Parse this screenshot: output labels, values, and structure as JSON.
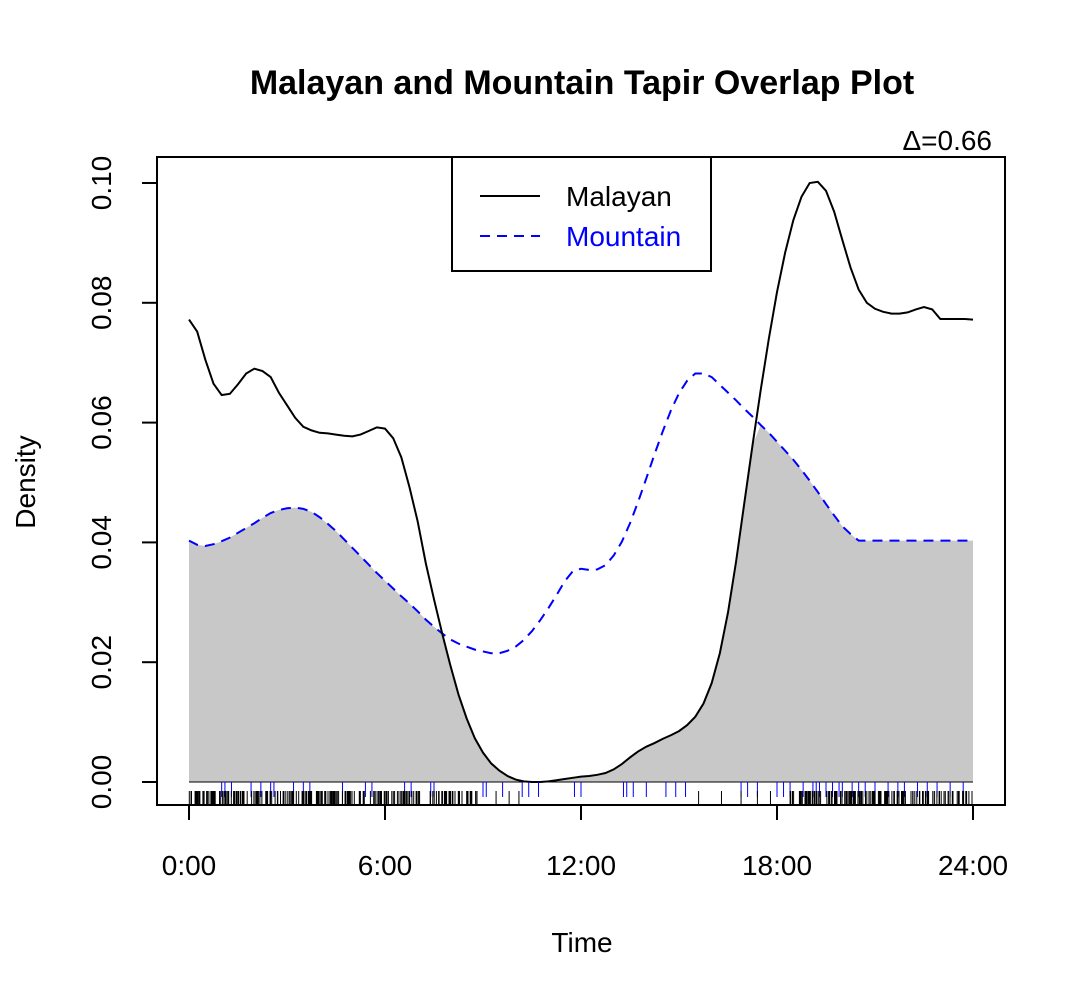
{
  "chart_data": {
    "type": "line",
    "title": "Malayan and Mountain Tapir Overlap Plot",
    "annotation": "Δ=0.66",
    "xlabel": "Time",
    "ylabel": "Density",
    "xlim": [
      0,
      24
    ],
    "ylim": [
      0,
      0.1
    ],
    "x_ticks": [
      0,
      6,
      12,
      18,
      24
    ],
    "x_tick_labels": [
      "0:00",
      "6:00",
      "12:00",
      "18:00",
      "24:00"
    ],
    "y_ticks": [
      0,
      0.02,
      0.04,
      0.06,
      0.08,
      0.1
    ],
    "y_tick_labels": [
      "0.00",
      "0.02",
      "0.04",
      "0.06",
      "0.08",
      "0.10"
    ],
    "legend_position": "top-center",
    "overlap_fill_color": "#c8c8c8",
    "series": [
      {
        "name": "Malayan",
        "color": "#000000",
        "line_style": "solid",
        "x": [
          0,
          0.25,
          0.5,
          0.75,
          1.0,
          1.25,
          1.5,
          1.75,
          2.0,
          2.25,
          2.5,
          2.75,
          3.0,
          3.25,
          3.5,
          3.75,
          4.0,
          4.25,
          4.5,
          4.75,
          5.0,
          5.25,
          5.5,
          5.75,
          6.0,
          6.25,
          6.5,
          6.75,
          7.0,
          7.25,
          7.5,
          7.75,
          8.0,
          8.25,
          8.5,
          8.75,
          9.0,
          9.25,
          9.5,
          9.75,
          10.0,
          10.25,
          10.5,
          10.75,
          11.0,
          11.25,
          11.5,
          11.75,
          12.0,
          12.25,
          12.5,
          12.75,
          13.0,
          13.25,
          13.5,
          13.75,
          14.0,
          14.25,
          14.5,
          14.75,
          15.0,
          15.25,
          15.5,
          15.75,
          16.0,
          16.25,
          16.5,
          16.75,
          17.0,
          17.25,
          17.5,
          17.75,
          18.0,
          18.25,
          18.5,
          18.75,
          19.0,
          19.25,
          19.5,
          19.75,
          20.0,
          20.25,
          20.5,
          20.75,
          21.0,
          21.25,
          21.5,
          21.75,
          22.0,
          22.25,
          22.5,
          22.75,
          23.0,
          23.25,
          23.5,
          23.75,
          24.0
        ],
        "values": [
          0.0772,
          0.0752,
          0.0705,
          0.0665,
          0.0646,
          0.0648,
          0.0664,
          0.0682,
          0.069,
          0.0686,
          0.0676,
          0.065,
          0.0629,
          0.0608,
          0.0593,
          0.0587,
          0.0583,
          0.0582,
          0.058,
          0.0578,
          0.0577,
          0.058,
          0.0586,
          0.0592,
          0.059,
          0.0574,
          0.0542,
          0.0492,
          0.0435,
          0.0365,
          0.0305,
          0.0248,
          0.0195,
          0.0146,
          0.0106,
          0.0073,
          0.0049,
          0.0031,
          0.0019,
          0.001,
          0.0004,
          0.0001,
          0.0,
          0.0,
          0.0001,
          0.0003,
          0.0005,
          0.0007,
          0.0009,
          0.001,
          0.0012,
          0.0015,
          0.0021,
          0.003,
          0.0041,
          0.0051,
          0.0059,
          0.0065,
          0.0072,
          0.0078,
          0.0085,
          0.0095,
          0.0109,
          0.0131,
          0.0165,
          0.0215,
          0.0283,
          0.0369,
          0.0466,
          0.0562,
          0.0654,
          0.074,
          0.0818,
          0.0884,
          0.0938,
          0.0977,
          0.1,
          0.1002,
          0.0987,
          0.0952,
          0.0905,
          0.0859,
          0.0822,
          0.08,
          0.079,
          0.0785,
          0.0782,
          0.0782,
          0.0784,
          0.0789,
          0.0793,
          0.0789,
          0.0773,
          0.0773,
          0.0773,
          0.0773,
          0.0772
        ]
      },
      {
        "name": "Mountain",
        "color": "#0000ff",
        "line_style": "dashed",
        "x": [
          0,
          0.25,
          0.5,
          0.75,
          1.0,
          1.25,
          1.5,
          1.75,
          2.0,
          2.25,
          2.5,
          2.75,
          3.0,
          3.25,
          3.5,
          3.75,
          4.0,
          4.25,
          4.5,
          4.75,
          5.0,
          5.25,
          5.5,
          5.75,
          6.0,
          6.25,
          6.5,
          6.75,
          7.0,
          7.25,
          7.5,
          7.75,
          8.0,
          8.25,
          8.5,
          8.75,
          9.0,
          9.25,
          9.5,
          9.75,
          10.0,
          10.25,
          10.5,
          10.75,
          11.0,
          11.25,
          11.5,
          11.75,
          12.0,
          12.25,
          12.5,
          12.75,
          13.0,
          13.25,
          13.5,
          13.75,
          14.0,
          14.25,
          14.5,
          14.75,
          15.0,
          15.25,
          15.5,
          15.75,
          16.0,
          16.25,
          16.5,
          16.75,
          17.0,
          17.25,
          17.5,
          17.75,
          18.0,
          18.25,
          18.5,
          18.75,
          19.0,
          19.25,
          19.5,
          19.75,
          20.0,
          20.25,
          20.5,
          20.75,
          21.0,
          21.25,
          21.5,
          21.75,
          22.0,
          22.25,
          22.5,
          22.75,
          23.0,
          23.25,
          23.5,
          23.75,
          24.0
        ],
        "values": [
          0.0403,
          0.0396,
          0.0394,
          0.0397,
          0.0402,
          0.0408,
          0.0416,
          0.0424,
          0.0432,
          0.0441,
          0.0449,
          0.0454,
          0.0457,
          0.0458,
          0.0456,
          0.0451,
          0.0442,
          0.0431,
          0.0419,
          0.0405,
          0.0391,
          0.0377,
          0.0363,
          0.0349,
          0.0336,
          0.0323,
          0.031,
          0.0298,
          0.0285,
          0.0271,
          0.0259,
          0.0248,
          0.0238,
          0.0231,
          0.0226,
          0.0221,
          0.0218,
          0.0215,
          0.0215,
          0.0219,
          0.0226,
          0.0237,
          0.0252,
          0.027,
          0.029,
          0.0312,
          0.0335,
          0.0352,
          0.0356,
          0.0354,
          0.0355,
          0.0362,
          0.0378,
          0.0401,
          0.0432,
          0.0468,
          0.0507,
          0.0547,
          0.0585,
          0.062,
          0.0649,
          0.067,
          0.0682,
          0.0682,
          0.0676,
          0.0663,
          0.065,
          0.0637,
          0.0623,
          0.061,
          0.0596,
          0.0583,
          0.0568,
          0.0553,
          0.0538,
          0.0521,
          0.0503,
          0.0484,
          0.0464,
          0.0445,
          0.0427,
          0.0414,
          0.0403,
          0.0403,
          0.0403,
          0.0403,
          0.0403,
          0.0403,
          0.0403,
          0.0403,
          0.0403,
          0.0403,
          0.0403,
          0.0403,
          0.0403,
          0.0403,
          0.0403
        ],
        "x_shift": 0
      }
    ],
    "rug": {
      "Mountain": [
        1.0,
        1.1,
        1.3,
        1.9,
        2.2,
        2.5,
        2.6,
        3.2,
        3.5,
        3.7,
        4.7,
        5.4,
        5.6,
        6.6,
        6.8,
        7.4,
        7.5,
        9.0,
        9.1,
        9.6,
        10.2,
        10.4,
        10.7,
        11.8,
        12.0,
        13.3,
        13.4,
        13.6,
        14.0,
        14.6,
        14.9,
        15.2,
        16.9,
        17.1,
        17.4,
        18.0,
        18.2,
        18.4,
        18.8,
        19.1,
        19.2,
        19.3,
        19.5,
        19.7,
        19.9,
        20.0,
        20.3,
        20.5,
        20.7,
        21.0,
        21.4,
        21.7,
        21.9,
        22.3,
        22.6,
        22.9,
        23.3,
        23.7
      ],
      "Malayan_dense_ranges": [
        [
          0.0,
          8.9
        ],
        [
          18.4,
          24.0
        ]
      ],
      "Malayan_sparse": [
        9.4,
        9.8,
        10.1,
        15.6,
        16.3,
        16.9,
        17.4,
        17.8
      ]
    }
  }
}
